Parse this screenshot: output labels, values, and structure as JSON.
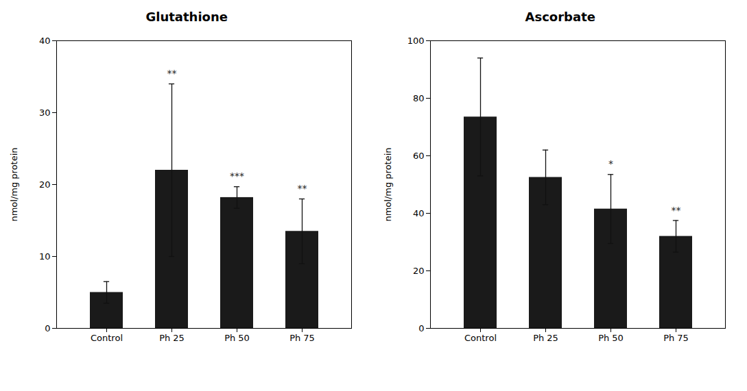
{
  "chart_data": [
    {
      "type": "bar",
      "title": "Glutathione",
      "y_label": "nmol/mg protein",
      "categories": [
        "Control",
        "Ph 25",
        "Ph 50",
        "Ph 75"
      ],
      "values": [
        5.0,
        22.0,
        18.2,
        13.5
      ],
      "errors": [
        1.5,
        12.0,
        1.5,
        4.5
      ],
      "annotations": [
        {
          "x": "Ph 25",
          "text": "**"
        },
        {
          "x": "Ph 50",
          "text": "***"
        },
        {
          "x": "Ph 75",
          "text": "**"
        }
      ],
      "color": "#1a1a1a",
      "ylim": [
        0,
        40
      ],
      "yticks": [
        0,
        10,
        20,
        30,
        40
      ],
      "grid": false
    },
    {
      "type": "bar",
      "title": "Ascorbate",
      "y_label": "nmol/mg protein",
      "categories": [
        "Control",
        "Ph 25",
        "Ph 50",
        "Ph 75"
      ],
      "values": [
        73.5,
        52.5,
        41.5,
        32.0
      ],
      "errors": [
        20.5,
        9.5,
        12.0,
        5.5
      ],
      "annotations": [
        {
          "x": "Ph 50",
          "text": "*"
        },
        {
          "x": "Ph 75",
          "text": "**"
        }
      ],
      "color": "#1a1a1a",
      "ylim": [
        0,
        100
      ],
      "yticks": [
        0,
        20,
        40,
        60,
        80,
        100
      ],
      "grid": false
    }
  ]
}
